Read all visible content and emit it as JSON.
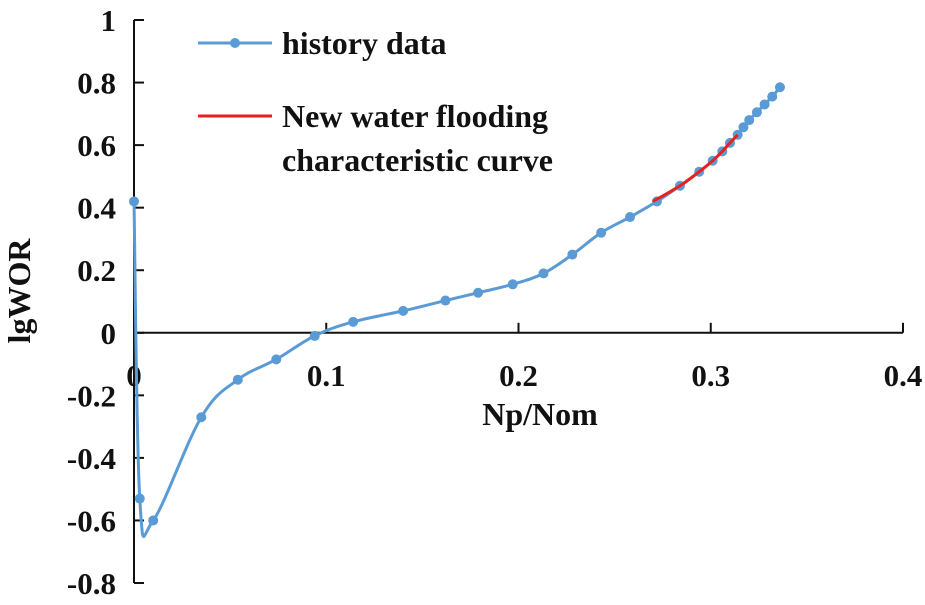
{
  "chart_data": {
    "type": "line",
    "title": "",
    "xlabel": "Np/Nom",
    "ylabel": "lgWOR",
    "xlim": [
      0,
      0.4
    ],
    "ylim": [
      -0.8,
      1
    ],
    "x_ticks": [
      "0",
      "0.1",
      "0.2",
      "0.3",
      "0.4"
    ],
    "y_ticks": [
      "1",
      "0.8",
      "0.6",
      "0.4",
      "0.2",
      "0",
      "-0.2",
      "-0.4",
      "-0.6",
      "-0.8"
    ],
    "grid": false,
    "legend_position": "top-left",
    "series": [
      {
        "name": "history data",
        "color": "#5B9BD5",
        "marker": "circle",
        "x": [
          0.0,
          0.003,
          0.01,
          0.035,
          0.054,
          0.074,
          0.094,
          0.114,
          0.14,
          0.162,
          0.179,
          0.197,
          0.213,
          0.228,
          0.243,
          0.258,
          0.272,
          0.284,
          0.294,
          0.301,
          0.306,
          0.31,
          0.314,
          0.317,
          0.32,
          0.324,
          0.328,
          0.332,
          0.336
        ],
        "y": [
          0.42,
          -0.53,
          -0.6,
          -0.27,
          -0.15,
          -0.085,
          -0.01,
          0.035,
          0.07,
          0.103,
          0.128,
          0.155,
          0.19,
          0.25,
          0.32,
          0.37,
          0.42,
          0.47,
          0.515,
          0.55,
          0.58,
          0.607,
          0.633,
          0.657,
          0.68,
          0.705,
          0.73,
          0.755,
          0.785
        ]
      },
      {
        "name": "New water flooding characteristic curve",
        "legend_lines": [
          "New water flooding",
          "characteristic curve"
        ],
        "color": "#E8201E",
        "marker": "none",
        "x": [
          0.27,
          0.284,
          0.294,
          0.301,
          0.306,
          0.31,
          0.314
        ],
        "y": [
          0.42,
          0.47,
          0.515,
          0.55,
          0.58,
          0.607,
          0.633
        ]
      }
    ]
  }
}
